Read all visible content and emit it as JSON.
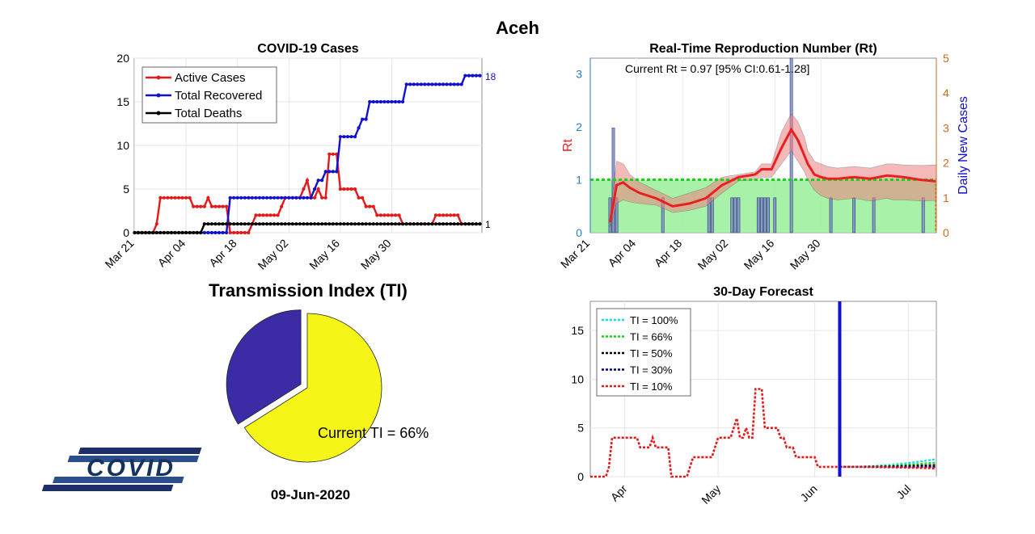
{
  "page_title": "Aceh",
  "date_label": "09-Jun-2020",
  "logo_text": "COVID",
  "pie_section_title": "Transmission Index (TI)",
  "colors": {
    "red": "#e41a1a",
    "blue": "#1010d0",
    "black": "#000000",
    "rt_red": "#e82020",
    "rt_fill": "#f7b4b4",
    "green_fill": "#9ef09e",
    "green_line": "#19d219",
    "orange": "#cc6a1e",
    "bar_fill": "#7f8fc0",
    "pie_yellow": "#f5f518",
    "pie_purple": "#3b2ba5",
    "cyan": "#10e0e0",
    "darkblue": "#00008b"
  },
  "chart_data": [
    {
      "type": "line",
      "title": "COVID-19 Cases",
      "x_tick_labels": [
        "Mar 21",
        "Apr 04",
        "Apr 18",
        "May 02",
        "May 16",
        "May 30"
      ],
      "ylim": [
        0,
        20
      ],
      "y_ticks": [
        "0",
        "5",
        "10",
        "15",
        "20"
      ],
      "grid": true,
      "legend_position": "top-left",
      "end_labels": {
        "total_recovered": "18",
        "total_deaths": "1"
      },
      "series": [
        {
          "name": "Active Cases",
          "color": "#e41a1a",
          "values": [
            0,
            0,
            0,
            0,
            0,
            0,
            1,
            4,
            4,
            4,
            4,
            4,
            4,
            4,
            4,
            4,
            3,
            3,
            3,
            3,
            4,
            3,
            3,
            3,
            3,
            3,
            0,
            0,
            0,
            0,
            0,
            0,
            1,
            2,
            2,
            2,
            2,
            2,
            2,
            2,
            3,
            4,
            4,
            4,
            4,
            4,
            5,
            6,
            4,
            4,
            5,
            4,
            4,
            9,
            9,
            9,
            5,
            5,
            5,
            5,
            5,
            4,
            4,
            3,
            3,
            3,
            2,
            2,
            2,
            2,
            2,
            2,
            2,
            1,
            1,
            1,
            1,
            1,
            1,
            1,
            1,
            1,
            2,
            2,
            2,
            2,
            2,
            2,
            2,
            1,
            1,
            1,
            1,
            1,
            1
          ]
        },
        {
          "name": "Total Recovered",
          "color": "#1010d0",
          "values": [
            0,
            0,
            0,
            0,
            0,
            0,
            0,
            0,
            0,
            0,
            0,
            0,
            0,
            0,
            0,
            0,
            0,
            0,
            0,
            0,
            0,
            0,
            0,
            0,
            0,
            0,
            4,
            4,
            4,
            4,
            4,
            4,
            4,
            4,
            4,
            4,
            4,
            4,
            4,
            4,
            4,
            4,
            4,
            4,
            4,
            4,
            4,
            4,
            4,
            5,
            6,
            6,
            7,
            7,
            7,
            7,
            11,
            11,
            11,
            11,
            11,
            12,
            13,
            13,
            15,
            15,
            15,
            15,
            15,
            15,
            15,
            15,
            15,
            15,
            17,
            17,
            17,
            17,
            17,
            17,
            17,
            17,
            17,
            17,
            17,
            17,
            17,
            17,
            17,
            17,
            18,
            18,
            18,
            18,
            18
          ]
        },
        {
          "name": "Total Deaths",
          "color": "#000000",
          "values": [
            0,
            0,
            0,
            0,
            0,
            0,
            0,
            0,
            0,
            0,
            0,
            0,
            0,
            0,
            0,
            0,
            0,
            0,
            0,
            1,
            1,
            1,
            1,
            1,
            1,
            1,
            1,
            1,
            1,
            1,
            1,
            1,
            1,
            1,
            1,
            1,
            1,
            1,
            1,
            1,
            1,
            1,
            1,
            1,
            1,
            1,
            1,
            1,
            1,
            1,
            1,
            1,
            1,
            1,
            1,
            1,
            1,
            1,
            1,
            1,
            1,
            1,
            1,
            1,
            1,
            1,
            1,
            1,
            1,
            1,
            1,
            1,
            1,
            1,
            1,
            1,
            1,
            1,
            1,
            1,
            1,
            1,
            1,
            1,
            1,
            1,
            1,
            1,
            1,
            1,
            1,
            1,
            1,
            1,
            1
          ]
        }
      ]
    },
    {
      "type": "line",
      "title": "Real-Time Reproduction Number (Rt)",
      "annotation": "Current Rt = 0.97 [95% CI:0.61-1.28]",
      "x_tick_labels": [
        "Mar 21",
        "Apr 04",
        "Apr 18",
        "May 02",
        "May 16",
        "May 30"
      ],
      "ylabel_left": "Rt",
      "ylabel_right": "Daily New Cases",
      "ylim_left": [
        0,
        3.3
      ],
      "y_ticks_left": [
        "0",
        "1",
        "2",
        "3"
      ],
      "ylim_right": [
        0,
        5
      ],
      "y_ticks_right": [
        "0",
        "1",
        "2",
        "3",
        "4",
        "5"
      ],
      "threshold": 1,
      "rt_x": [
        6,
        8,
        10,
        12,
        15,
        20,
        25,
        30,
        35,
        40,
        45,
        50,
        52,
        55,
        58,
        61,
        63,
        65,
        66,
        68,
        70,
        72,
        75,
        80,
        85,
        90,
        92,
        95,
        100,
        105
      ],
      "rt": [
        0.2,
        0.9,
        0.95,
        0.85,
        0.75,
        0.65,
        0.5,
        0.55,
        0.65,
        0.9,
        1.05,
        1.1,
        1.2,
        1.2,
        1.6,
        1.95,
        1.75,
        1.45,
        1.3,
        1.1,
        1.05,
        1.02,
        1.02,
        1.05,
        1.02,
        1.08,
        1.07,
        1.05,
        1.0,
        0.97
      ],
      "rt_upper": [
        0.3,
        1.35,
        1.3,
        1.1,
        0.95,
        0.8,
        0.65,
        0.75,
        0.85,
        1.05,
        1.1,
        1.15,
        1.3,
        1.3,
        1.9,
        2.25,
        2.1,
        1.8,
        1.55,
        1.35,
        1.3,
        1.25,
        1.22,
        1.25,
        1.22,
        1.3,
        1.3,
        1.28,
        1.27,
        1.28
      ],
      "rt_lower": [
        0.1,
        0.55,
        0.62,
        0.58,
        0.55,
        0.52,
        0.38,
        0.42,
        0.5,
        0.75,
        0.98,
        1.0,
        1.05,
        1.05,
        1.3,
        1.55,
        1.35,
        1.15,
        1.0,
        0.8,
        0.7,
        0.65,
        0.62,
        0.65,
        0.6,
        0.65,
        0.62,
        0.62,
        0.6,
        0.61
      ],
      "bars_x": [
        6,
        7,
        8,
        22,
        36,
        37,
        43,
        44,
        45,
        51,
        52,
        53,
        54,
        56,
        61,
        73,
        80,
        86,
        101
      ],
      "bars": [
        1,
        3,
        1,
        1,
        1,
        1,
        1,
        1,
        1,
        1,
        1,
        1,
        1,
        1,
        5,
        1,
        1,
        1,
        1
      ],
      "series": [
        {
          "name": "Rt",
          "color": "#e82020"
        },
        {
          "name": "Daily New Cases",
          "color": "#1010d0"
        }
      ]
    },
    {
      "type": "pie",
      "annotation": "Current TI = 66%",
      "slices": [
        {
          "value": 66,
          "color": "#f5f518"
        },
        {
          "value": 34,
          "color": "#3b2ba5",
          "exploded": true
        }
      ]
    },
    {
      "type": "line",
      "title": "30-Day Forecast",
      "x_tick_labels": [
        "Apr",
        "May",
        "Jun",
        "Jul"
      ],
      "ylim": [
        0,
        18
      ],
      "y_ticks": [
        "0",
        "5",
        "10",
        "15"
      ],
      "grid": true,
      "legend_position": "top-left",
      "vline_day": 80,
      "history_values": [
        0,
        0,
        0,
        0,
        0,
        0,
        1,
        4,
        4,
        4,
        4,
        4,
        4,
        4,
        4,
        4,
        3,
        3,
        3,
        3,
        4,
        3,
        3,
        3,
        3,
        3,
        0,
        0,
        0,
        0,
        0,
        0,
        1,
        2,
        2,
        2,
        2,
        2,
        2,
        2,
        3,
        4,
        4,
        4,
        4,
        4,
        5,
        6,
        4,
        4,
        5,
        4,
        4,
        9,
        9,
        9,
        5,
        5,
        5,
        5,
        5,
        4,
        4,
        3,
        3,
        3,
        2,
        2,
        2,
        2,
        2,
        2,
        2,
        1,
        1,
        1,
        1,
        1,
        1,
        1,
        1,
        1
      ],
      "series": [
        {
          "name": "TI = 100%",
          "color": "#10e0e0",
          "end": 1.8
        },
        {
          "name": "TI = 66%",
          "color": "#19d219",
          "end": 1.45
        },
        {
          "name": "TI = 50%",
          "color": "#000000",
          "end": 1.2
        },
        {
          "name": "TI = 30%",
          "color": "#00008b",
          "end": 1.0
        },
        {
          "name": "TI = 10%",
          "color": "#e41a1a",
          "end": 0.85
        }
      ]
    }
  ]
}
